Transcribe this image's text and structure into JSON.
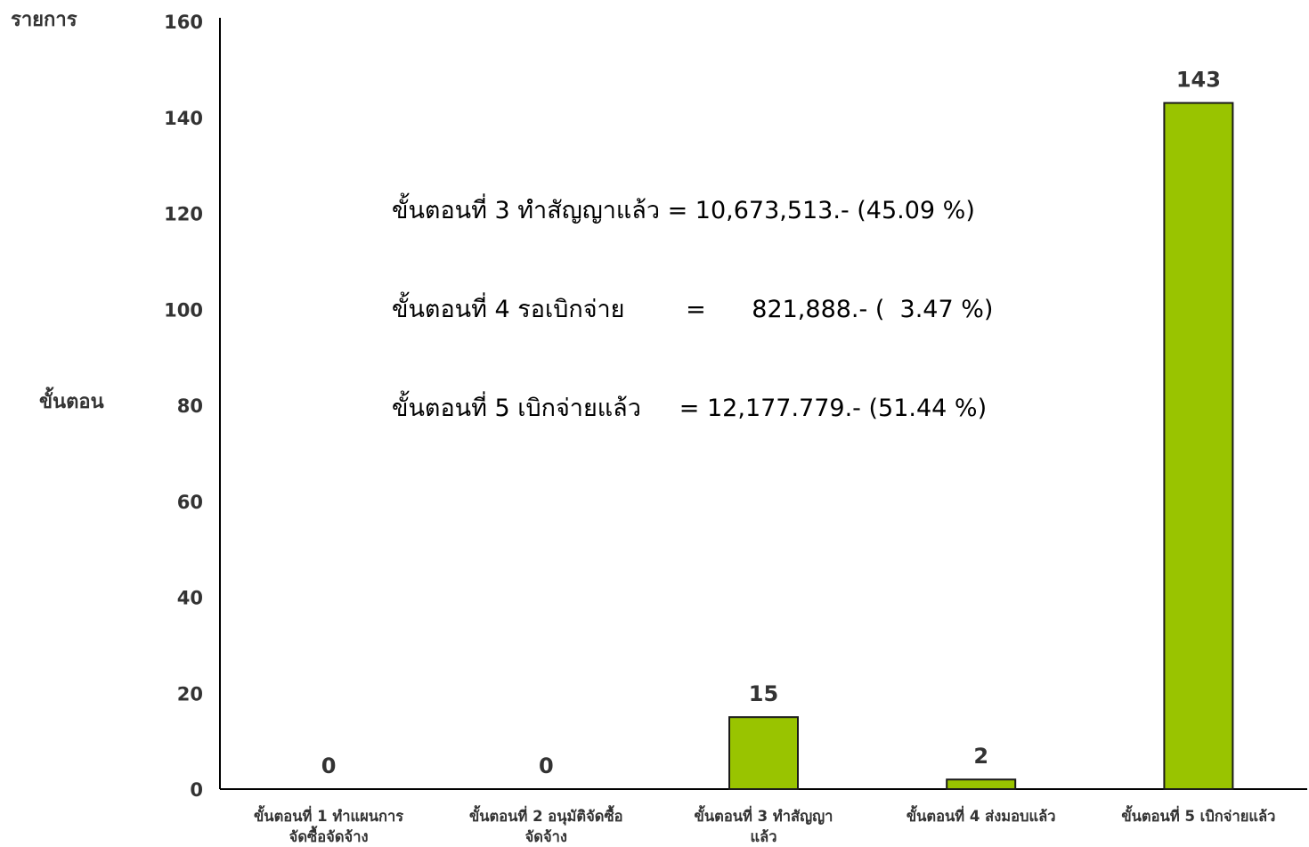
{
  "chart_data": {
    "type": "bar",
    "ylabel_top": "รายการ",
    "ylabel_mid": "ขั้นตอน",
    "ylim": [
      0,
      160
    ],
    "yticks": [
      0,
      20,
      40,
      60,
      80,
      100,
      120,
      140,
      160
    ],
    "categories": [
      [
        "ขั้นตอนที่ 1 ทำแผนการ",
        "จัดซื้อจัดจ้าง"
      ],
      [
        "ขั้นตอนที่ 2 อนุมัติจัดซื้อ",
        "จัดจ้าง"
      ],
      [
        "ขั้นตอนที่ 3 ทำสัญญา",
        "แล้ว"
      ],
      [
        "ขั้นตอนที่ 4 ส่งมอบแล้ว"
      ],
      [
        "ขั้นตอนที่ 5 เบิกจ่ายแล้ว"
      ]
    ],
    "values": [
      0,
      0,
      15,
      2,
      143
    ],
    "data_labels": [
      "0",
      "0",
      "15",
      "2",
      "143"
    ],
    "bar_color": "#99c400",
    "bar_border": "#1a1a1a",
    "grid": false,
    "annotations": [
      "ขั้นตอนที่ 3 ทำสัญญาแล้ว = 10,673,513.- (45.09 %)",
      "ขั้นตอนที่ 4 รอเบิกจ่าย        =      821,888.- (  3.47 %)",
      "ขั้นตอนที่ 5 เบิกจ่ายแล้ว     = 12,177.779.- (51.44 %)"
    ]
  }
}
